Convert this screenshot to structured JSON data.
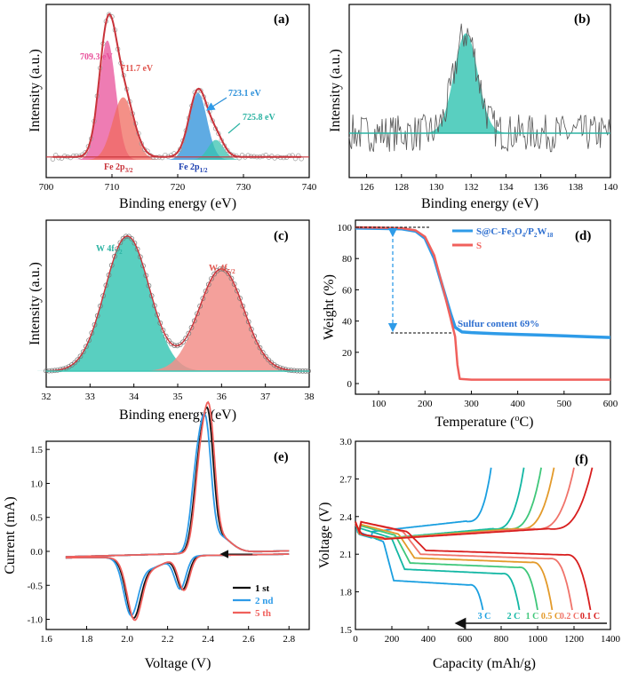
{
  "chart_data": [
    {
      "panel": "(a)",
      "type": "line",
      "xlabel": "Binding energy (eV)",
      "ylabel": "Intensity (a.u.)",
      "xlim": [
        700,
        740
      ],
      "xticks": [
        "700",
        "710",
        "720",
        "730",
        "740"
      ],
      "series": [
        {
          "name": "Fe 2p3/2",
          "peak": 709.3,
          "height": 0.84,
          "fwhm": 3.0,
          "color": "#e8509a"
        },
        {
          "name": "Fe 2p3/2",
          "peak": 711.7,
          "height": 0.44,
          "fwhm": 3.8,
          "color": "#f06b5f"
        },
        {
          "name": "Fe 2p1/2",
          "peak": 723.1,
          "height": 0.47,
          "fwhm": 3.2,
          "color": "#2a8fd9"
        },
        {
          "name": "Fe 2p1/2",
          "peak": 725.8,
          "height": 0.14,
          "fwhm": 2.8,
          "color": "#37c3b0"
        }
      ],
      "annotations": [
        "709.3 eV",
        "711.7 eV",
        "723.1 eV",
        "725.8 eV"
      ],
      "group_labels": [
        "Fe 2p",
        "3/2",
        "Fe 2p",
        "1/2"
      ]
    },
    {
      "panel": "(b)",
      "type": "line",
      "xlabel": "Binding energy (eV)",
      "ylabel": "Intensity (a.u.)",
      "xlim": [
        125,
        140
      ],
      "xticks": [
        "126",
        "128",
        "130",
        "132",
        "134",
        "136",
        "138",
        "140"
      ],
      "series": [
        {
          "name": "",
          "peak": 131.7,
          "height": 0.75,
          "fwhm": 1.6,
          "color": "#3cc7b5"
        }
      ]
    },
    {
      "panel": "(c)",
      "type": "line",
      "xlabel": "Binding energy (eV)",
      "ylabel": "Intensity (a.u.)",
      "xlim": [
        32,
        38
      ],
      "xticks": [
        "32",
        "33",
        "34",
        "35",
        "36",
        "37",
        "38"
      ],
      "series": [
        {
          "name": "W 4f7/2",
          "peak": 33.85,
          "height": 0.95,
          "fwhm": 1.2,
          "color": "#3cc7b5"
        },
        {
          "name": "W 4f5/2",
          "peak": 36.0,
          "height": 0.72,
          "fwhm": 1.2,
          "color": "#f28f8a"
        }
      ],
      "annotations": [
        "W 4f",
        "7/2",
        "W 4f",
        "5/2"
      ]
    },
    {
      "panel": "(d)",
      "type": "line",
      "xlabel": "Temperature (oC)",
      "ylabel": "Weight (%)",
      "xlim": [
        50,
        600
      ],
      "ylim": [
        0,
        105
      ],
      "xticks": [
        "100",
        "200",
        "300",
        "400",
        "500",
        "600"
      ],
      "yticks": [
        "0",
        "20",
        "40",
        "60",
        "80",
        "100"
      ],
      "series": [
        {
          "name": "S@C-Fe3O4/P2W18",
          "color": "#2e9be8",
          "x": [
            50,
            100,
            150,
            180,
            200,
            220,
            240,
            255,
            265,
            280,
            300,
            350,
            400,
            450,
            500,
            550,
            600
          ],
          "y": [
            99.5,
            99.3,
            99.0,
            97.5,
            93,
            80,
            60,
            45,
            36,
            33,
            32.6,
            32.0,
            31.5,
            31.0,
            30.5,
            30.0,
            29.5
          ]
        },
        {
          "name": "S",
          "color": "#f0605c",
          "x": [
            50,
            100,
            150,
            180,
            200,
            220,
            240,
            255,
            265,
            270,
            275,
            300,
            400,
            500,
            600
          ],
          "y": [
            100,
            99.8,
            99.5,
            98,
            94,
            82,
            60,
            42,
            30,
            12,
            3,
            2.5,
            2.5,
            2.5,
            2.5
          ]
        }
      ],
      "annotations": [
        "Sulfur content 69%"
      ]
    },
    {
      "panel": "(e)",
      "type": "line",
      "xlabel": "Voltage (V)",
      "ylabel": "Current (mA)",
      "xlim": [
        1.6,
        2.9
      ],
      "ylim": [
        -1.15,
        1.62
      ],
      "xticks": [
        "1.6",
        "1.8",
        "2.0",
        "2.2",
        "2.4",
        "2.6",
        "2.8"
      ],
      "yticks": [
        "-1.0",
        "-0.5",
        "0.0",
        "0.5",
        "1.0",
        "1.5"
      ],
      "series": [
        {
          "name": "1 st",
          "color": "#111111",
          "shift": 0.0,
          "scale": 1.0
        },
        {
          "name": "2 nd",
          "color": "#2e9be8",
          "shift": -0.012,
          "scale": 0.97
        },
        {
          "name": "5 th",
          "color": "#f0605c",
          "shift": 0.006,
          "scale": 1.03
        }
      ]
    },
    {
      "panel": "(f)",
      "type": "line",
      "xlabel": "Capacity (mAh/g)",
      "ylabel": "Voltage (V)",
      "xlim": [
        0,
        1400
      ],
      "ylim": [
        1.5,
        3.0
      ],
      "xticks": [
        "0",
        "200",
        "400",
        "600",
        "800",
        "1000",
        "1200",
        "1400"
      ],
      "yticks": [
        "1.5",
        "1.8",
        "2.1",
        "2.4",
        "2.7",
        "3.0"
      ],
      "series": [
        {
          "name": "3 C",
          "color": "#1a9fe0",
          "discharge": 700,
          "charge": 745,
          "plateau2": 1.86,
          "plateau1": 2.22
        },
        {
          "name": "2 C",
          "color": "#13b7a4",
          "discharge": 900,
          "charge": 925,
          "plateau2": 1.95,
          "plateau1": 2.25
        },
        {
          "name": "1 C",
          "color": "#3fc77a",
          "discharge": 1000,
          "charge": 1020,
          "plateau2": 2.0,
          "plateau1": 2.27
        },
        {
          "name": "0.5 C",
          "color": "#e39a2a",
          "discharge": 1080,
          "charge": 1090,
          "plateau2": 2.04,
          "plateau1": 2.28
        },
        {
          "name": "0.2 C",
          "color": "#f0736a",
          "discharge": 1190,
          "charge": 1200,
          "plateau2": 2.07,
          "plateau1": 2.3
        },
        {
          "name": "0.1 C",
          "color": "#d81e1e",
          "discharge": 1290,
          "charge": 1300,
          "plateau2": 2.1,
          "plateau1": 2.3
        }
      ]
    }
  ]
}
